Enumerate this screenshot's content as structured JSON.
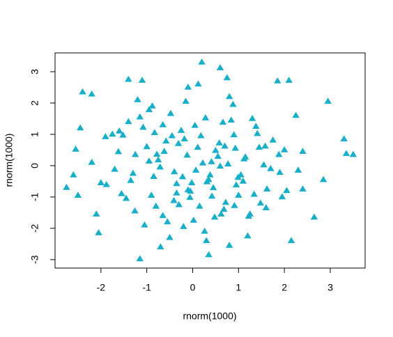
{
  "chart_data": {
    "type": "scatter",
    "xlabel": "rnorm(1000)",
    "ylabel": "rnorm(1000)",
    "color": "#1aafc8",
    "marker": "triangle",
    "xlim": [
      -3.0,
      3.76
    ],
    "ylim": [
      -3.27,
      3.6
    ],
    "xticks": [
      -2,
      -1,
      0,
      1,
      2,
      3
    ],
    "yticks": [
      -3,
      -2,
      -1,
      0,
      1,
      2,
      3
    ],
    "x": [
      -0.12,
      0.45,
      -0.83,
      1.12,
      0.07,
      -1.35,
      0.66,
      -0.41,
      1.58,
      -0.95,
      0.28,
      -0.22,
      0.91,
      -1.62,
      1.34,
      -0.58,
      0.02,
      0.77,
      -1.08,
      1.9,
      -0.35,
      0.55,
      -0.71,
      1.41,
      -1.88,
      0.18,
      0.99,
      -0.15,
      -1.26,
      0.62,
      1.75,
      -0.48,
      0.31,
      -0.9,
      0.11,
      1.22,
      -1.52,
      0.84,
      -0.06,
      0.41,
      -1.7,
      0.72,
      -0.31,
      1.05,
      -0.78,
      0.26,
      1.62,
      -1.15,
      0.5,
      -0.02,
      2.05,
      -2.2,
      0.93,
      -0.65,
      1.3,
      -0.25,
      0.6,
      -1.45,
      1.88,
      -0.88,
      0.15,
      -1.0,
      1.48,
      -0.4,
      0.8,
      -1.9,
      0.35,
      1.15,
      -0.55,
      2.25,
      -0.18,
      0.68,
      -1.3,
      0.05,
      1.7,
      -0.75,
      0.42,
      -1.6,
      0.95,
      -0.3,
      1.38,
      -0.1,
      -2.0,
      0.58,
      -0.95,
      1.95,
      0.22,
      -0.5,
      1.1,
      -1.25,
      0.38,
      -0.62,
      1.55,
      -1.75,
      0.88,
      -0.05,
      2.3,
      -0.35,
      0.7,
      -1.05,
      0.48,
      -0.85,
      1.25,
      -0.2,
      2.0,
      -1.4,
      0.9,
      -0.65,
      0.12,
      1.6,
      -0.45,
      1.0,
      -1.2,
      0.3,
      -0.8,
      1.45,
      -0.1,
      0.75,
      -1.55,
      2.4,
      -2.75,
      -2.6,
      -2.55,
      -2.5,
      -2.4,
      -2.2,
      -2.45,
      -2.05,
      -2.1,
      -1.4,
      -1.1,
      -1.15,
      0.2,
      0.6,
      0.35,
      1.85,
      2.1,
      2.95,
      3.3,
      3.35,
      3.5,
      2.85,
      2.65,
      2.15,
      1.2,
      0.8,
      -0.7,
      2.4
    ],
    "y": [
      0.33,
      -0.71,
      1.05,
      0.21,
      -0.15,
      -0.48,
      1.38,
      -1.12,
      0.62,
      0.14,
      1.52,
      -0.36,
      -1.28,
      0.44,
      -0.92,
      0.78,
      -1.75,
      0.05,
      1.22,
      -0.22,
      -0.88,
      0.29,
      -0.05,
      1.02,
      -0.61,
      0.95,
      -0.38,
      2.05,
      -1.45,
      -1.55,
      0.81,
      1.66,
      -0.52,
      -0.95,
      0.58,
      -1.62,
      0.97,
      1.45,
      -1.02,
      0.12,
      -0.12,
      -1.18,
      0.7,
      -0.3,
      0.36,
      -2.1,
      -0.75,
      1.55,
      0.48,
      -0.55,
      -0.8,
      0.1,
      0.55,
      -1.6,
      1.5,
      1.12,
      -0.02,
      -1.05,
      0.35,
      1.9,
      -1.3,
      0.6,
      -1.2,
      -0.2,
      2.2,
      0.92,
      -0.45,
      0.27,
      -1.8,
      1.6,
      0.85,
      -1.4,
      -0.25,
      1.28,
      -0.1,
      0.18,
      -0.98,
      1.1,
      -0.62,
      -1.25,
      1.25,
      2.5,
      -0.55,
      0.72,
      1.78,
      -1.0,
      0.08,
      -2.3,
      -0.5,
      0.35,
      -0.3,
      0.45,
      0.02,
      1.0,
      1.95,
      -0.82,
      -0.15,
      -0.58,
      0.62,
      -1.9,
      -1.65,
      -0.35,
      -1.55,
      -1.95,
      0.5,
      1.4,
      0.98,
      1.3,
      2.6,
      -1.35,
      0.95,
      -0.95,
      2.1,
      -2.4,
      -1.3,
      0.58,
      -0.78,
      2.8,
      -0.9,
      -0.75,
      -0.7,
      -0.3,
      0.52,
      -0.95,
      2.35,
      2.28,
      1.2,
      -2.15,
      -1.55,
      2.75,
      2.72,
      -2.98,
      3.3,
      3.12,
      -2.85,
      2.7,
      2.72,
      2.05,
      0.85,
      0.38,
      0.35,
      -0.45,
      -1.65,
      -2.4,
      -2.25,
      -2.55,
      -2.6,
      0.45
    ]
  }
}
